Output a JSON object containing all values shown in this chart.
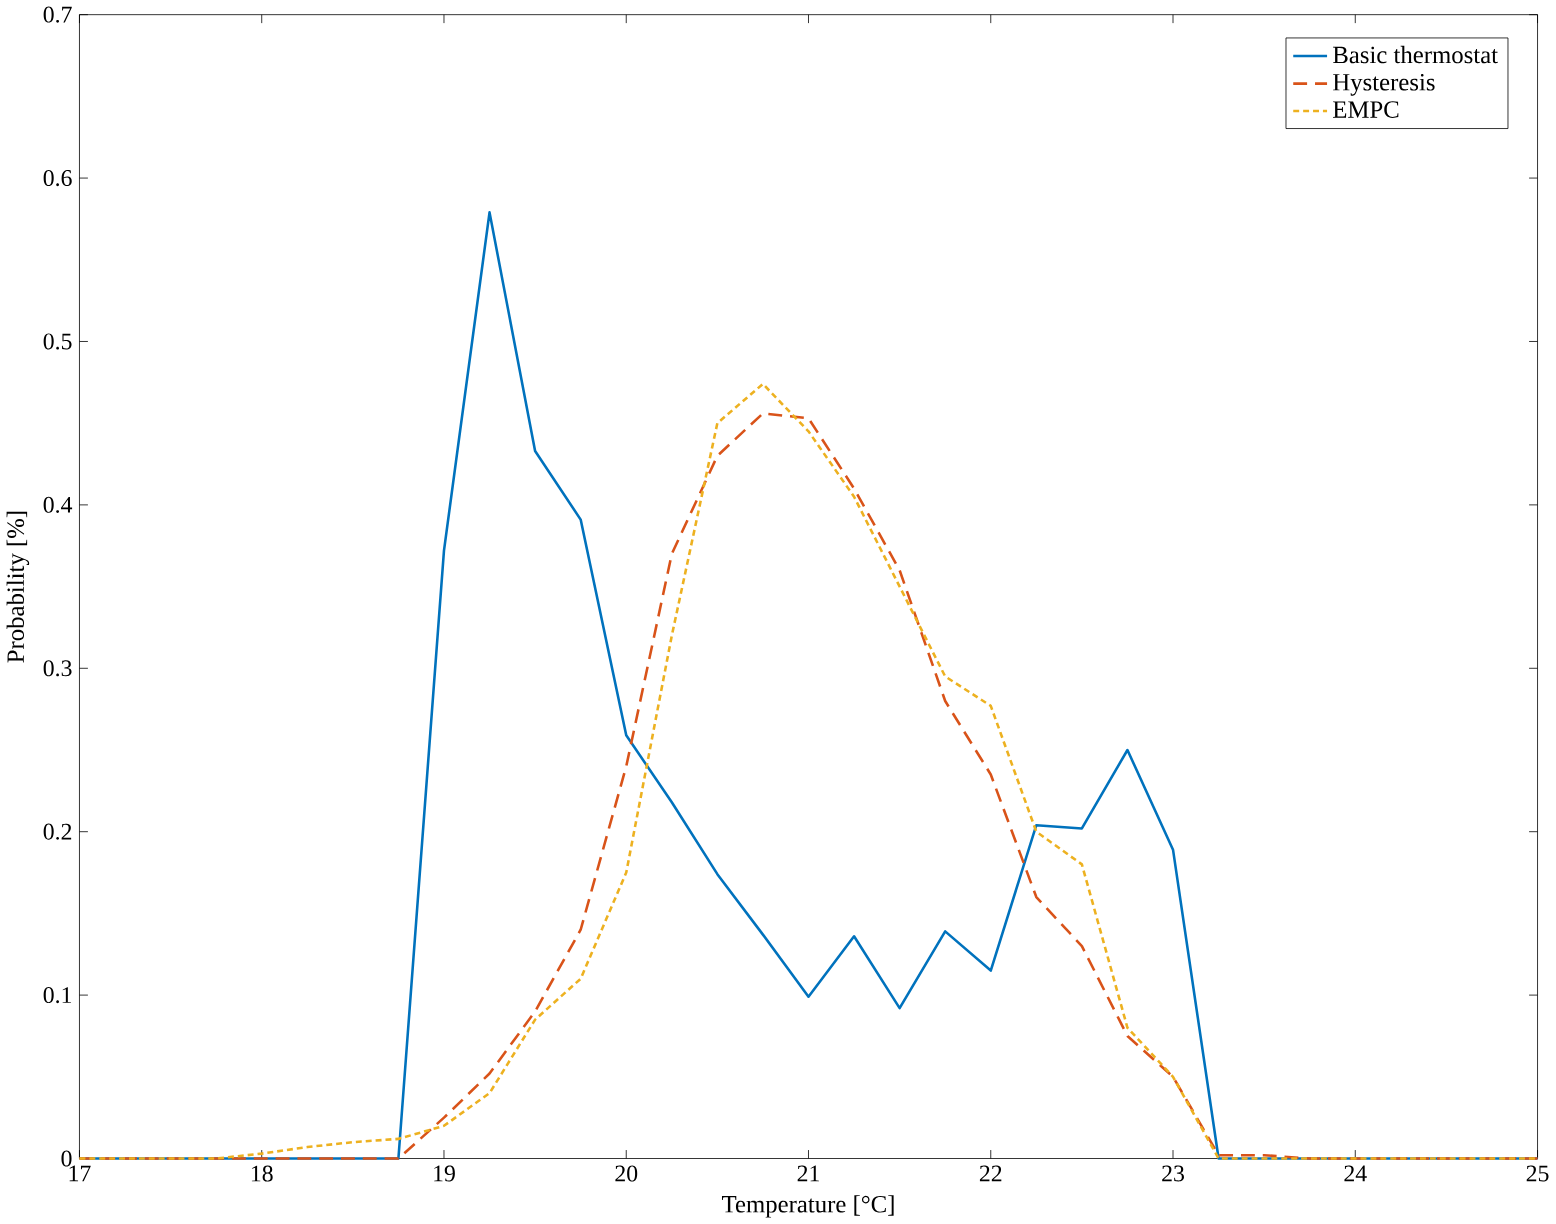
{
  "chart_data": {
    "type": "line",
    "xlabel": "Temperature [°C]",
    "ylabel": "Probability [%]",
    "x": [
      17,
      17.25,
      17.5,
      17.75,
      18,
      18.25,
      18.5,
      18.75,
      19,
      19.25,
      19.5,
      19.75,
      20,
      20.25,
      20.5,
      20.75,
      21,
      21.25,
      21.5,
      21.75,
      22,
      22.25,
      22.5,
      22.75,
      23,
      23.25,
      23.5,
      23.75,
      24,
      24.25,
      24.5,
      24.75,
      25
    ],
    "series": [
      {
        "name": "Basic thermostat",
        "color": "#0072bd",
        "line_style": "solid",
        "values": [
          0,
          0,
          0,
          0,
          0,
          0,
          0,
          0,
          0.372,
          0.579,
          0.433,
          0.391,
          0.259,
          0.218,
          0.174,
          0.137,
          0.099,
          0.136,
          0.092,
          0.139,
          0.115,
          0.204,
          0.202,
          0.25,
          0.189,
          0,
          0,
          0,
          0,
          0,
          0,
          0,
          0
        ]
      },
      {
        "name": "Hysteresis",
        "color": "#d95319",
        "line_style": "dashed",
        "values": [
          0,
          0,
          0,
          0,
          0,
          0,
          0,
          0,
          0.025,
          0.052,
          0.09,
          0.14,
          0.24,
          0.37,
          0.43,
          0.456,
          0.453,
          0.41,
          0.36,
          0.28,
          0.235,
          0.16,
          0.13,
          0.075,
          0.05,
          0.002,
          0.002,
          0,
          0,
          0,
          0,
          0,
          0
        ]
      },
      {
        "name": "EMPC",
        "color": "#edb120",
        "line_style": "dotted",
        "values": [
          0,
          0,
          0,
          0,
          0.003,
          0.007,
          0.01,
          0.012,
          0.02,
          0.04,
          0.085,
          0.11,
          0.175,
          0.32,
          0.45,
          0.474,
          0.445,
          0.405,
          0.35,
          0.295,
          0.277,
          0.2,
          0.18,
          0.08,
          0.05,
          0,
          0,
          0,
          0,
          0,
          0,
          0,
          0
        ]
      }
    ],
    "xlim": [
      17,
      25
    ],
    "xticks": [
      17,
      18,
      19,
      20,
      21,
      22,
      23,
      24,
      25
    ],
    "ylim": [
      0,
      0.7
    ],
    "yticks": [
      0,
      0.1,
      0.2,
      0.3,
      0.4,
      0.5,
      0.6,
      0.7
    ],
    "grid": false,
    "legend": "top right",
    "marker": "none"
  }
}
